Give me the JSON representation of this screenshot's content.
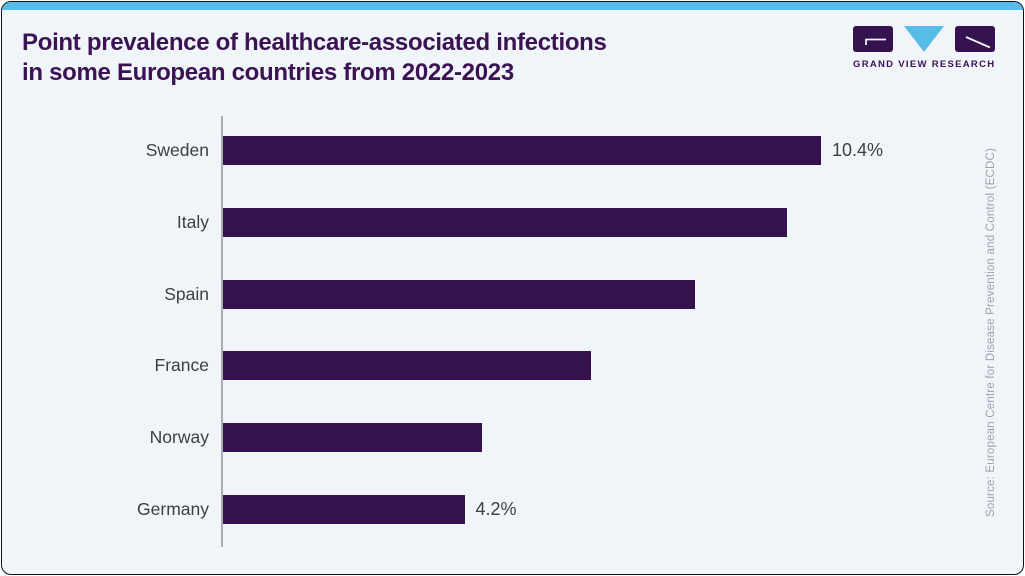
{
  "title": {
    "line1": "Point prevalence of healthcare-associated infections",
    "line2": "in some European countries from 2022-2023"
  },
  "logo": {
    "caption": "GRAND VIEW RESEARCH",
    "marks": [
      "g-glyph-block",
      "down-triangle",
      "r-glyph-block"
    ]
  },
  "source_note": "Source: European Centre for Disease Prevention and Control (ECDC)",
  "colors": {
    "bar": "#35124d",
    "accent_blue": "#58bce8",
    "card_background": "#f0f5fa",
    "title_text": "#3b1252",
    "label_text": "#3e3e3e",
    "source_text": "#9aa3ab",
    "axis_line": "#a8aeb2"
  },
  "chart_data": {
    "type": "bar",
    "orientation": "horizontal",
    "title": "Point prevalence of healthcare-associated infections in some European countries from 2022-2023",
    "categories": [
      "Sweden",
      "Italy",
      "Spain",
      "France",
      "Norway",
      "Germany"
    ],
    "values": [
      10.4,
      9.8,
      8.2,
      6.4,
      4.5,
      4.2
    ],
    "value_labels": [
      "10.4%",
      "",
      "",
      "",
      "",
      "4.2%"
    ],
    "unit": "%",
    "xlabel": "",
    "ylabel": "",
    "xlim": [
      0,
      10.4
    ],
    "grid": false,
    "legend": false
  }
}
